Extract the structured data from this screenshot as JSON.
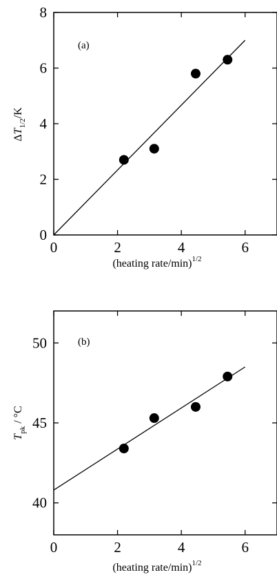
{
  "chart_data": [
    {
      "type": "scatter",
      "panel_label": "(a)",
      "ylabel_parts": {
        "delta": "Δ",
        "symbol": "T",
        "subscript": "1/2",
        "unit": "/K"
      },
      "xlabel_parts": {
        "text": "(heating rate/min)",
        "superscript": "1/2"
      },
      "xlim": [
        0,
        7
      ],
      "ylim": [
        0,
        8
      ],
      "xticks": [
        0,
        2,
        4,
        6
      ],
      "yticks": [
        0,
        2,
        4,
        6,
        8
      ],
      "grid": false,
      "x": [
        2.2,
        3.15,
        4.45,
        5.45
      ],
      "y": [
        2.7,
        3.1,
        5.8,
        6.3
      ],
      "fit_line": {
        "x": [
          0,
          6
        ],
        "y": [
          0,
          7.0
        ]
      }
    },
    {
      "type": "scatter",
      "panel_label": "(b)",
      "ylabel_parts": {
        "symbol": "T",
        "subscript": "pk",
        "unit": " / °C"
      },
      "xlabel_parts": {
        "text": "(heating rate/min)",
        "superscript": "1/2"
      },
      "xlim": [
        0,
        7
      ],
      "ylim": [
        38,
        52
      ],
      "xticks": [
        0,
        2,
        4,
        6
      ],
      "yticks": [
        40,
        45,
        50
      ],
      "grid": false,
      "x": [
        2.2,
        3.15,
        4.45,
        5.45
      ],
      "y": [
        43.4,
        45.3,
        46.0,
        47.9
      ],
      "fit_line": {
        "x": [
          0,
          6
        ],
        "y": [
          40.8,
          48.5
        ]
      }
    }
  ]
}
